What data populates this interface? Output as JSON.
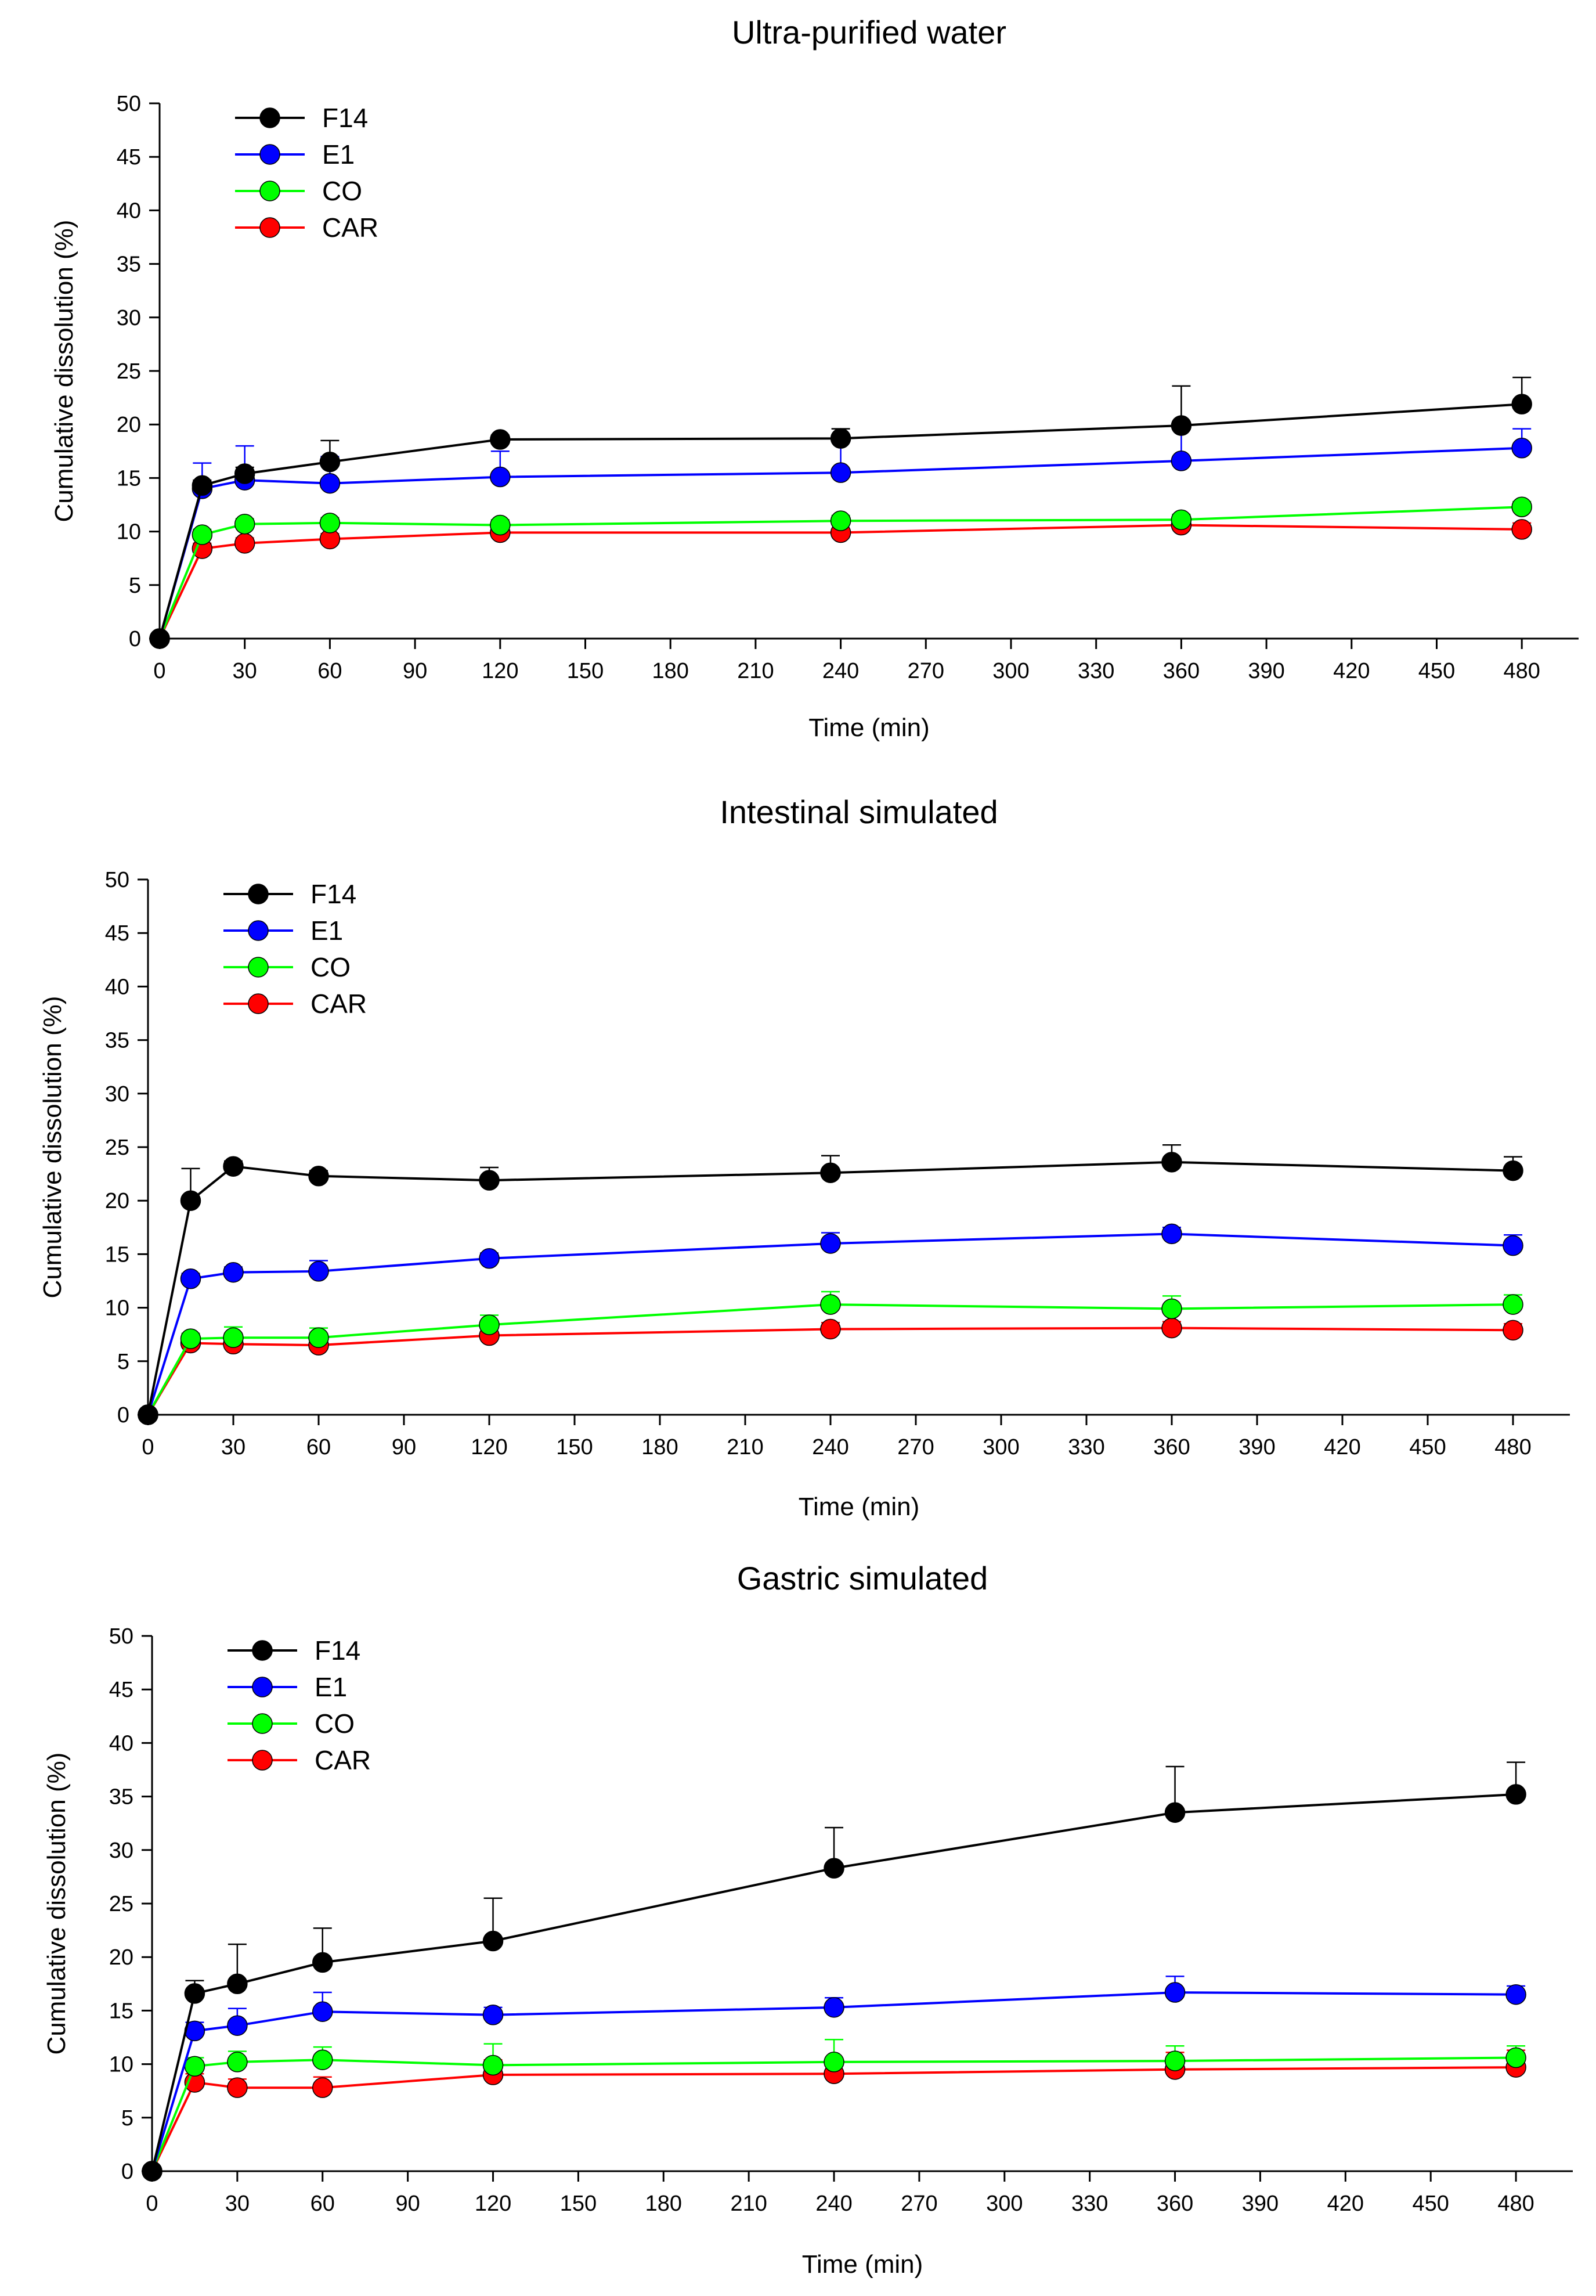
{
  "chart_data": [
    {
      "type": "line",
      "title": "Ultra-purified water",
      "xlabel": "Time (min)",
      "ylabel": "Cumulative dissolution (%)",
      "xlim": [
        0,
        500
      ],
      "ylim": [
        0,
        50
      ],
      "xticks": [
        0,
        30,
        60,
        90,
        120,
        150,
        180,
        210,
        240,
        270,
        300,
        330,
        360,
        390,
        420,
        450,
        480
      ],
      "yticks": [
        0,
        5,
        10,
        15,
        20,
        25,
        30,
        35,
        40,
        45,
        50
      ],
      "legend_position": "top-left",
      "x": [
        0,
        15,
        30,
        60,
        120,
        240,
        360,
        480
      ],
      "series": [
        {
          "name": "F14",
          "color": "#000000",
          "values": [
            0,
            14.3,
            15.4,
            16.5,
            18.6,
            18.7,
            19.9,
            21.9
          ],
          "errors": [
            0,
            0.5,
            0.6,
            2.0,
            0.4,
            0.9,
            3.7,
            2.5
          ]
        },
        {
          "name": "E1",
          "color": "#0000ff",
          "values": [
            0,
            14.0,
            14.8,
            14.5,
            15.1,
            15.5,
            16.6,
            17.8
          ],
          "errors": [
            0,
            2.4,
            3.2,
            2.5,
            2.4,
            3.2,
            3.3,
            1.8
          ]
        },
        {
          "name": "CO",
          "color": "#00ff00",
          "values": [
            0,
            9.7,
            10.7,
            10.8,
            10.6,
            11.0,
            11.1,
            12.3
          ],
          "errors": [
            0,
            0.5,
            0.5,
            0.5,
            0.5,
            0.5,
            0.5,
            0.5
          ]
        },
        {
          "name": "CAR",
          "color": "#ff0000",
          "values": [
            0,
            8.4,
            8.9,
            9.3,
            9.9,
            9.9,
            10.6,
            10.2
          ],
          "errors": [
            0,
            0.5,
            0.5,
            0.5,
            0.7,
            1.0,
            0.6,
            0.6
          ]
        }
      ]
    },
    {
      "type": "line",
      "title": "Intestinal simulated",
      "xlabel": "Time (min)",
      "ylabel": "Cumulative dissolution (%)",
      "xlim": [
        0,
        500
      ],
      "ylim": [
        0,
        50
      ],
      "xticks": [
        0,
        30,
        60,
        90,
        120,
        150,
        180,
        210,
        240,
        270,
        300,
        330,
        360,
        390,
        420,
        450,
        480
      ],
      "yticks": [
        0,
        5,
        10,
        15,
        20,
        25,
        30,
        35,
        40,
        45,
        50
      ],
      "legend_position": "top-left",
      "x": [
        0,
        15,
        30,
        60,
        120,
        240,
        360,
        480
      ],
      "series": [
        {
          "name": "F14",
          "color": "#000000",
          "values": [
            0,
            20.0,
            23.2,
            22.3,
            21.9,
            22.6,
            23.6,
            22.8
          ],
          "errors": [
            0,
            3.0,
            0.5,
            0.5,
            1.2,
            1.6,
            1.6,
            1.3
          ]
        },
        {
          "name": "E1",
          "color": "#0000ff",
          "values": [
            0,
            12.7,
            13.3,
            13.4,
            14.6,
            16.0,
            16.9,
            15.8
          ],
          "errors": [
            0,
            0.5,
            0.5,
            1.0,
            0.5,
            1.0,
            0.6,
            1.0
          ]
        },
        {
          "name": "CO",
          "color": "#00ff00",
          "values": [
            0,
            7.1,
            7.2,
            7.2,
            8.4,
            10.3,
            9.9,
            10.3
          ],
          "errors": [
            0,
            0.5,
            1.0,
            0.9,
            0.9,
            1.2,
            1.2,
            0.9
          ]
        },
        {
          "name": "CAR",
          "color": "#ff0000",
          "values": [
            0,
            6.7,
            6.6,
            6.5,
            7.4,
            8.0,
            8.1,
            7.9
          ],
          "errors": [
            0,
            0.6,
            1.0,
            1.0,
            1.0,
            0.6,
            0.6,
            0.6
          ]
        }
      ]
    },
    {
      "type": "line",
      "title": "Gastric simulated",
      "xlabel": "Time (min)",
      "ylabel": "Cumulative dissolution (%)",
      "xlim": [
        0,
        500
      ],
      "ylim": [
        0,
        50
      ],
      "xticks": [
        0,
        30,
        60,
        90,
        120,
        150,
        180,
        210,
        240,
        270,
        300,
        330,
        360,
        390,
        420,
        450,
        480
      ],
      "yticks": [
        0,
        5,
        10,
        15,
        20,
        25,
        30,
        35,
        40,
        45,
        50
      ],
      "legend_position": "top-left",
      "x": [
        0,
        15,
        30,
        60,
        120,
        240,
        360,
        480
      ],
      "series": [
        {
          "name": "F14",
          "color": "#000000",
          "values": [
            0,
            16.6,
            17.5,
            19.5,
            21.5,
            28.3,
            33.5,
            35.2
          ],
          "errors": [
            0,
            1.2,
            3.7,
            3.2,
            4.0,
            3.8,
            4.3,
            3.0
          ]
        },
        {
          "name": "E1",
          "color": "#0000ff",
          "values": [
            0,
            13.1,
            13.6,
            14.9,
            14.6,
            15.3,
            16.7,
            16.5
          ],
          "errors": [
            0,
            0.8,
            1.6,
            1.8,
            0.7,
            0.9,
            1.5,
            0.8
          ]
        },
        {
          "name": "CO",
          "color": "#00ff00",
          "values": [
            0,
            9.8,
            10.2,
            10.4,
            9.9,
            10.2,
            10.3,
            10.6
          ],
          "errors": [
            0,
            0.8,
            1.0,
            1.2,
            2.0,
            2.1,
            1.4,
            1.1
          ]
        },
        {
          "name": "CAR",
          "color": "#ff0000",
          "values": [
            0,
            8.3,
            7.8,
            7.8,
            9.0,
            9.1,
            9.5,
            9.7
          ],
          "errors": [
            0,
            0.8,
            0.8,
            1.0,
            1.4,
            1.1,
            1.6,
            1.6
          ]
        }
      ]
    }
  ]
}
